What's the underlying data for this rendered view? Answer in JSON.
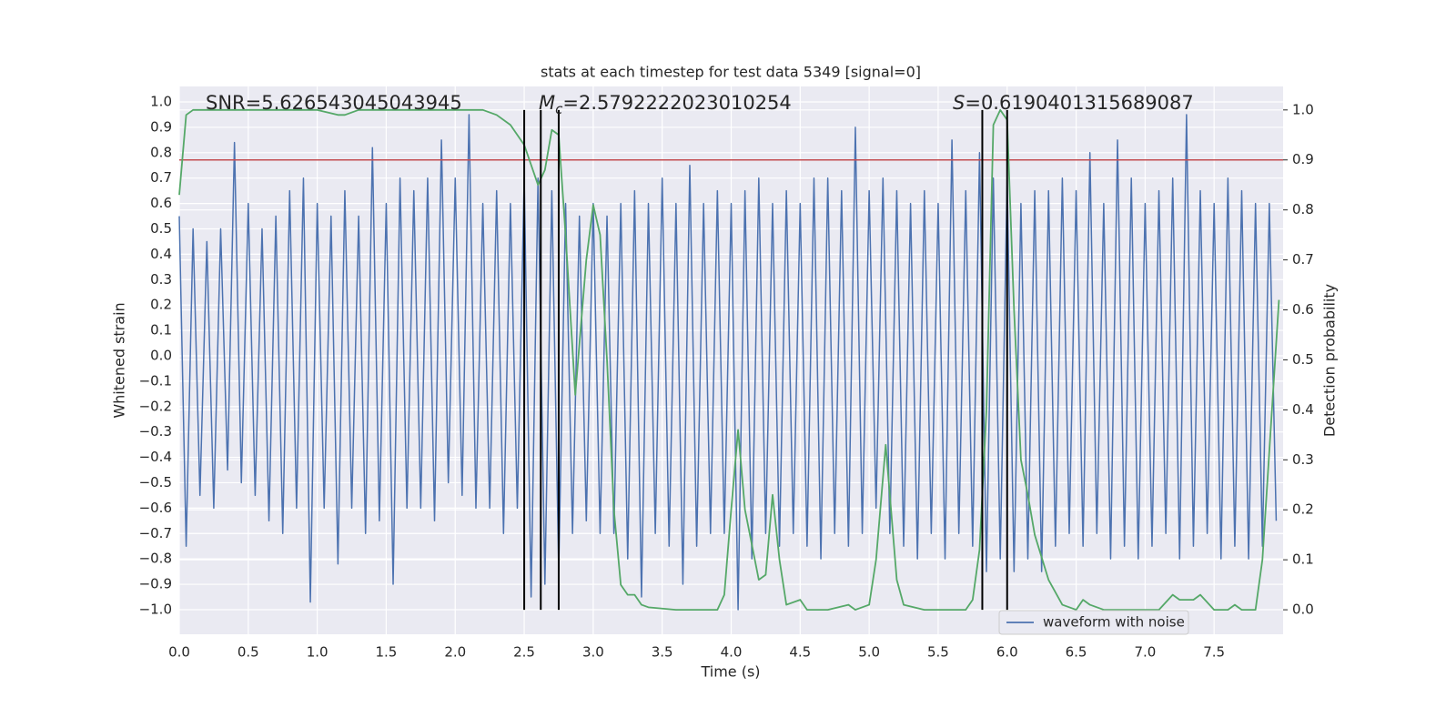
{
  "chart_data": {
    "type": "line",
    "title": "stats at each timestep for test data 5349 [signal=0]",
    "x_label": "Time (s)",
    "y_label": "Whitened strain",
    "y2_label": "Detection probability",
    "xlim": [
      0,
      8.0
    ],
    "ylim": [
      -1.097,
      1.061
    ],
    "y2lim": [
      -0.049,
      1.047
    ],
    "grid": true,
    "legend": "lower right",
    "xticks": [
      {
        "value": 0,
        "label": "0.0"
      },
      0.5,
      {
        "value": 1,
        "label": "1.0"
      },
      1.5,
      {
        "value": 2,
        "label": "2.0"
      },
      2.5,
      {
        "value": 3,
        "label": "3.0"
      },
      3.5,
      {
        "value": 4,
        "label": "4.0"
      },
      4.5,
      {
        "value": 5,
        "label": "5.0"
      },
      5.5,
      {
        "value": 6,
        "label": "6.0"
      },
      6.5,
      {
        "value": 7,
        "label": "7.0"
      },
      7.5
    ],
    "yticks": [
      {
        "value": -1,
        "label": "−1.0"
      },
      {
        "value": -0.9,
        "label": "−0.9"
      },
      {
        "value": -0.8,
        "label": "−0.8"
      },
      {
        "value": -0.7,
        "label": "−0.7"
      },
      {
        "value": -0.6,
        "label": "−0.6"
      },
      {
        "value": -0.5,
        "label": "−0.5"
      },
      {
        "value": -0.4,
        "label": "−0.4"
      },
      {
        "value": -0.3,
        "label": "−0.3"
      },
      {
        "value": -0.2,
        "label": "−0.2"
      },
      {
        "value": -0.1,
        "label": "−0.1"
      },
      {
        "value": 0,
        "label": "0.0"
      },
      0.1,
      0.2,
      0.3,
      0.4,
      0.5,
      0.6,
      0.7,
      0.8,
      0.9,
      {
        "value": 1,
        "label": "1.0"
      }
    ],
    "y2ticks": [
      {
        "value": 0,
        "label": "0.0"
      },
      0.1,
      0.2,
      0.3,
      0.4,
      0.5,
      0.6,
      0.7,
      0.8,
      0.9,
      {
        "value": 1,
        "label": "1.0"
      }
    ],
    "annotations": [
      {
        "text": "SNR=5.626543045043945"
      },
      {
        "symbol": "M",
        "subscript": "c",
        "text": "=2.5792222023010254"
      },
      {
        "symbol": "S",
        "text": "=0.6190401315689087"
      }
    ],
    "threshold": {
      "value": 0.9,
      "axis": "y2",
      "color": "#c44e52"
    },
    "vlines": {
      "x": [
        2.5,
        2.62,
        2.75,
        5.82,
        6.0
      ],
      "span": [
        0,
        1
      ],
      "axis": "y2",
      "color": "#000000"
    },
    "series": [
      {
        "name": "waveform with noise",
        "color": "#4c72b0",
        "x": [
          0,
          0.05,
          0.1,
          0.15,
          0.2,
          0.25,
          0.3,
          0.35,
          0.4,
          0.45,
          0.5,
          0.55,
          0.6,
          0.65,
          0.7,
          0.75,
          0.8,
          0.85,
          0.9,
          0.95,
          1,
          1.05,
          1.1,
          1.15,
          1.2,
          1.25,
          1.3,
          1.35,
          1.4,
          1.45,
          1.5,
          1.55,
          1.6,
          1.65,
          1.7,
          1.75,
          1.8,
          1.85,
          1.9,
          1.95,
          2,
          2.05,
          2.1,
          2.15,
          2.2,
          2.25,
          2.3,
          2.35,
          2.4,
          2.45,
          2.5,
          2.55,
          2.6,
          2.65,
          2.7,
          2.75,
          2.8,
          2.85,
          2.9,
          2.95,
          3,
          3.05,
          3.1,
          3.15,
          3.2,
          3.25,
          3.3,
          3.35,
          3.4,
          3.45,
          3.5,
          3.55,
          3.6,
          3.65,
          3.7,
          3.75,
          3.8,
          3.85,
          3.9,
          3.95,
          4,
          4.05,
          4.1,
          4.15,
          4.2,
          4.25,
          4.3,
          4.35,
          4.4,
          4.45,
          4.5,
          4.55,
          4.6,
          4.65,
          4.7,
          4.75,
          4.8,
          4.85,
          4.9,
          4.95,
          5,
          5.05,
          5.1,
          5.15,
          5.2,
          5.25,
          5.3,
          5.35,
          5.4,
          5.45,
          5.5,
          5.55,
          5.6,
          5.65,
          5.7,
          5.75,
          5.8,
          5.85,
          5.9,
          5.95,
          6,
          6.05,
          6.1,
          6.15,
          6.2,
          6.25,
          6.3,
          6.35,
          6.4,
          6.45,
          6.5,
          6.55,
          6.6,
          6.65,
          6.7,
          6.75,
          6.8,
          6.85,
          6.9,
          6.95,
          7,
          7.05,
          7.1,
          7.15,
          7.2,
          7.25,
          7.3,
          7.35,
          7.4,
          7.45,
          7.5,
          7.55,
          7.6,
          7.65,
          7.7,
          7.75,
          7.8,
          7.85,
          7.9,
          7.95
        ],
        "values": [
          0.55,
          -0.75,
          0.5,
          -0.55,
          0.45,
          -0.6,
          0.5,
          -0.45,
          0.84,
          -0.5,
          0.6,
          -0.55,
          0.5,
          -0.65,
          0.55,
          -0.7,
          0.65,
          -0.6,
          0.7,
          -0.97,
          0.6,
          -0.6,
          0.55,
          -0.82,
          0.65,
          -0.6,
          0.55,
          -0.7,
          0.82,
          -0.65,
          0.6,
          -0.9,
          0.7,
          -0.6,
          0.65,
          -0.6,
          0.7,
          -0.65,
          0.85,
          -0.5,
          0.7,
          -0.55,
          0.95,
          -0.6,
          0.6,
          -0.6,
          0.65,
          -0.7,
          0.6,
          -0.6,
          0.7,
          -0.95,
          0.7,
          -0.9,
          0.65,
          -0.85,
          0.6,
          -0.7,
          0.55,
          -0.65,
          0.6,
          -0.7,
          0.55,
          -0.7,
          0.6,
          -0.8,
          0.65,
          -0.95,
          0.6,
          -0.7,
          0.7,
          -0.75,
          0.6,
          -0.9,
          0.75,
          -0.75,
          0.6,
          -0.7,
          0.65,
          -0.7,
          0.6,
          -1.0,
          0.65,
          -0.8,
          0.7,
          -0.7,
          0.6,
          -0.75,
          0.65,
          -0.7,
          0.6,
          -0.75,
          0.7,
          -0.8,
          0.7,
          -0.7,
          0.65,
          -0.75,
          0.9,
          -0.7,
          0.65,
          -0.6,
          0.7,
          -0.7,
          0.65,
          -0.75,
          0.6,
          -0.8,
          0.65,
          -0.7,
          0.6,
          -0.8,
          0.85,
          -0.7,
          0.65,
          -0.75,
          0.8,
          -0.85,
          0.7,
          -0.8,
          0.7,
          -0.85,
          0.6,
          -0.8,
          0.65,
          -0.85,
          0.65,
          -0.75,
          0.7,
          -0.7,
          0.65,
          -0.75,
          0.8,
          -0.7,
          0.6,
          -0.8,
          0.85,
          -0.75,
          0.7,
          -0.8,
          0.6,
          -0.75,
          0.65,
          -0.7,
          0.7,
          -0.8,
          0.95,
          -0.75,
          0.65,
          -0.7,
          0.6,
          -0.8,
          0.7,
          -0.75,
          0.65,
          -0.8,
          0.6,
          -0.75,
          0.6,
          -0.65
        ]
      },
      {
        "color": "#55a868",
        "axis": "y2",
        "x": [
          0,
          0.05,
          0.1,
          0.5,
          1.0,
          1.15,
          1.2,
          1.3,
          2.2,
          2.3,
          2.4,
          2.5,
          2.6,
          2.65,
          2.7,
          2.75,
          2.8,
          2.87,
          2.95,
          3.0,
          3.05,
          3.1,
          3.15,
          3.2,
          3.25,
          3.3,
          3.35,
          3.4,
          3.6,
          3.9,
          3.95,
          4.0,
          4.05,
          4.1,
          4.2,
          4.25,
          4.3,
          4.35,
          4.4,
          4.5,
          4.55,
          4.7,
          4.85,
          4.9,
          5.0,
          5.05,
          5.12,
          5.2,
          5.25,
          5.4,
          5.7,
          5.75,
          5.8,
          5.85,
          5.9,
          5.95,
          6.0,
          6.05,
          6.1,
          6.15,
          6.2,
          6.3,
          6.4,
          6.5,
          6.55,
          6.6,
          6.7,
          7.1,
          7.2,
          7.25,
          7.35,
          7.4,
          7.5,
          7.6,
          7.65,
          7.7,
          7.8,
          7.85,
          7.97
        ],
        "values": [
          0.83,
          0.99,
          1.0,
          1.0,
          1.0,
          0.99,
          0.99,
          1.0,
          1.0,
          0.99,
          0.97,
          0.93,
          0.85,
          0.88,
          0.96,
          0.95,
          0.75,
          0.43,
          0.7,
          0.81,
          0.75,
          0.5,
          0.2,
          0.05,
          0.03,
          0.03,
          0.01,
          0.005,
          0.0,
          0.0,
          0.03,
          0.2,
          0.36,
          0.2,
          0.06,
          0.07,
          0.23,
          0.1,
          0.01,
          0.02,
          0.0,
          0.0,
          0.01,
          0.0,
          0.01,
          0.1,
          0.33,
          0.06,
          0.01,
          0.0,
          0.0,
          0.02,
          0.12,
          0.4,
          0.97,
          1.0,
          0.98,
          0.6,
          0.3,
          0.23,
          0.15,
          0.06,
          0.01,
          0.0,
          0.02,
          0.01,
          0.0,
          0.0,
          0.03,
          0.02,
          0.02,
          0.03,
          0.0,
          0.0,
          0.01,
          0.0,
          0.0,
          0.1,
          0.62
        ]
      }
    ]
  }
}
